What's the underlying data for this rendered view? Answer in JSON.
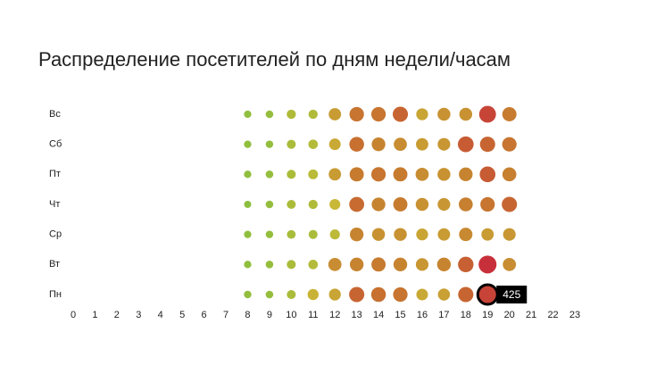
{
  "chart_data": {
    "type": "punchcard",
    "title": "Распределение посетителей по дням недели/часам",
    "categories": [
      "Пн",
      "Вт",
      "Ср",
      "Чт",
      "Пт",
      "Сб",
      "Вс"
    ],
    "x": [
      8,
      9,
      10,
      11,
      12,
      13,
      14,
      15,
      16,
      17,
      18,
      19,
      20
    ],
    "values": [
      [
        65,
        70,
        120,
        200,
        230,
        360,
        340,
        330,
        220,
        240,
        360,
        425,
        280
      ],
      [
        60,
        70,
        120,
        140,
        280,
        300,
        320,
        300,
        260,
        300,
        370,
        460,
        280
      ],
      [
        60,
        65,
        110,
        120,
        160,
        300,
        270,
        270,
        230,
        250,
        290,
        250,
        260
      ],
      [
        50,
        70,
        120,
        130,
        190,
        350,
        300,
        320,
        270,
        260,
        310,
        330,
        360
      ],
      [
        60,
        70,
        120,
        150,
        250,
        320,
        330,
        320,
        280,
        270,
        300,
        380,
        310
      ],
      [
        60,
        65,
        120,
        140,
        220,
        340,
        300,
        280,
        250,
        260,
        380,
        360,
        330
      ],
      [
        60,
        70,
        130,
        130,
        250,
        330,
        330,
        360,
        230,
        270,
        270,
        420,
        320
      ]
    ],
    "xlim": [
      0,
      23
    ],
    "xticks": [
      0,
      1,
      2,
      3,
      4,
      5,
      6,
      7,
      8,
      9,
      10,
      11,
      12,
      13,
      14,
      15,
      16,
      17,
      18,
      19,
      20,
      21,
      22,
      23
    ],
    "colors": [
      "#8cbf3f",
      "#c9b937",
      "#c7792f",
      "#c7303a"
    ],
    "highlight": {
      "row": 0,
      "col": 11
    }
  }
}
